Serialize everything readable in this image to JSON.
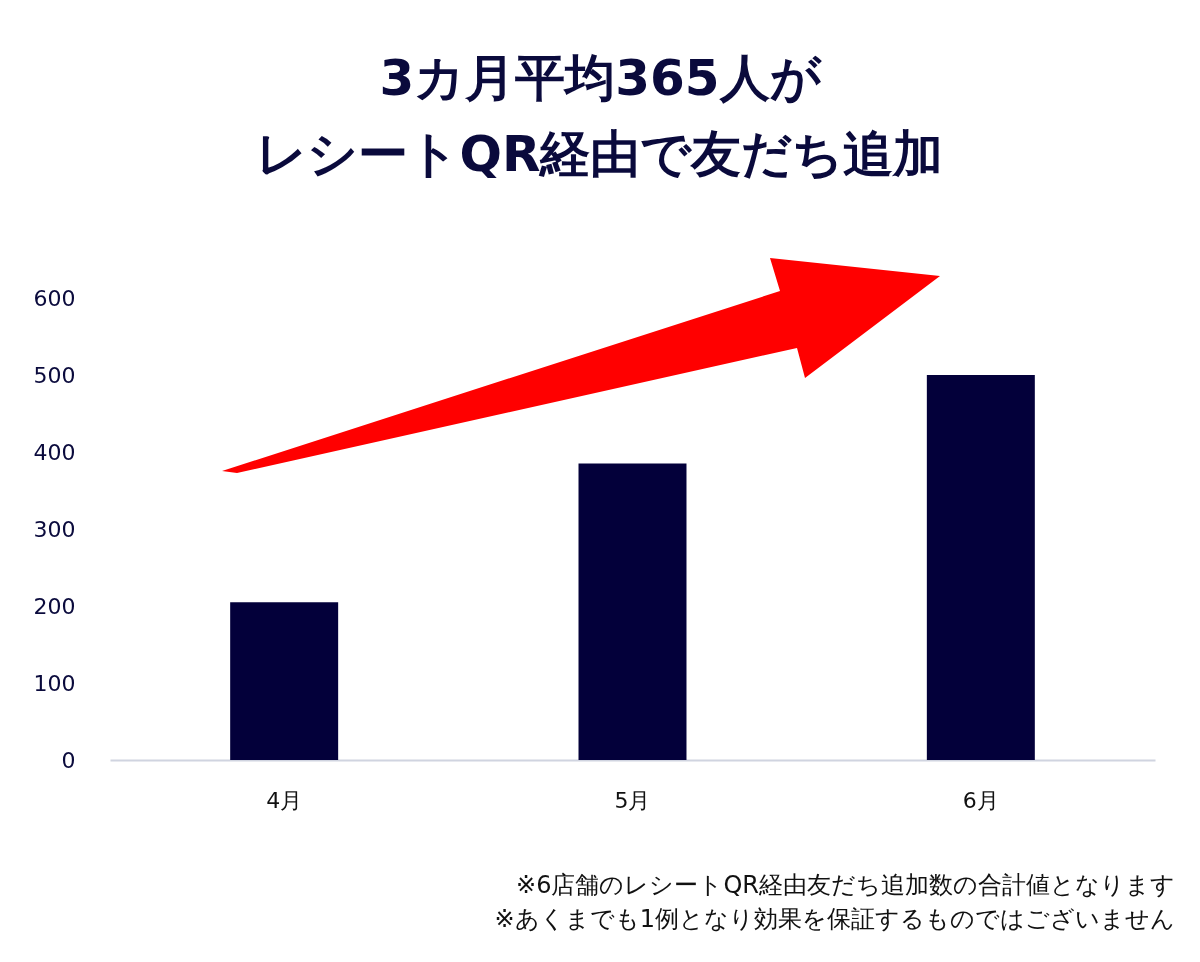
{
  "chart_data": {
    "type": "bar",
    "title": "3カ月平均365人が",
    "subtitle": "レシートQR経由で友だち追加",
    "categories": [
      "4月",
      "5月",
      "6月"
    ],
    "values": [
      205,
      385,
      500
    ],
    "color": "#03003a",
    "ylim": [
      0,
      600
    ],
    "yticks": [
      0,
      100,
      200,
      300,
      400,
      500,
      600
    ],
    "grid": false,
    "annotations": [
      "※6店舗のレシートQR経由友だち追加数の合計値となります",
      "※あくまでも1例となり効果を保証するものではございません"
    ]
  }
}
